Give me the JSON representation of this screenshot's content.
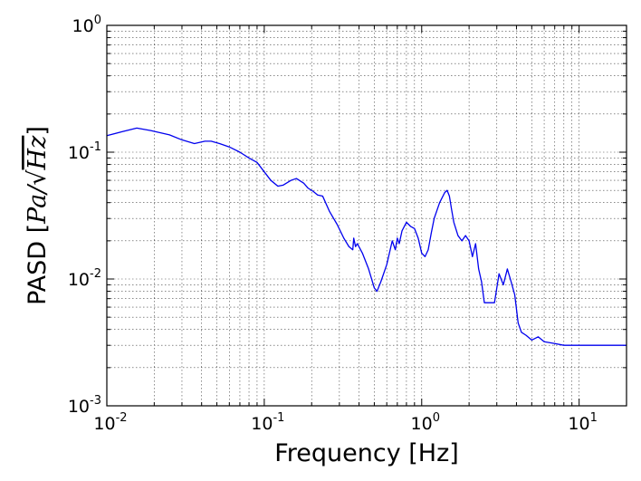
{
  "chart_data": {
    "type": "line",
    "title": "",
    "xlabel": "Frequency [Hz]",
    "ylabel_prefix": "PASD [",
    "ylabel_math": "Pa/",
    "ylabel_root": "Hz",
    "ylabel_suffix": "]",
    "xscale": "log",
    "yscale": "log",
    "xlim": [
      0.01,
      20.0
    ],
    "ylim": [
      0.001,
      1.0
    ],
    "grid": true,
    "legend": "none",
    "line_color": "#0000ee",
    "x_ticks": [
      {
        "base": "10",
        "exp": "-2",
        "value": 0.01
      },
      {
        "base": "10",
        "exp": "-1",
        "value": 0.1
      },
      {
        "base": "10",
        "exp": "0",
        "value": 1
      },
      {
        "base": "10",
        "exp": "1",
        "value": 10
      }
    ],
    "y_ticks": [
      {
        "base": "10",
        "exp": "0",
        "value": 1
      },
      {
        "base": "10",
        "exp": "-1",
        "value": 0.1
      },
      {
        "base": "10",
        "exp": "-2",
        "value": 0.01
      },
      {
        "base": "10",
        "exp": "-3",
        "value": 0.001
      }
    ],
    "series": [
      {
        "x": [
          0.01,
          0.0125,
          0.0155,
          0.019,
          0.025,
          0.03,
          0.036,
          0.042,
          0.046,
          0.052,
          0.06,
          0.07,
          0.08,
          0.09,
          0.1,
          0.11,
          0.122,
          0.132,
          0.148,
          0.16,
          0.178,
          0.19,
          0.205,
          0.218,
          0.235,
          0.26,
          0.29,
          0.32,
          0.345,
          0.365,
          0.37,
          0.38,
          0.39,
          0.42,
          0.46,
          0.5,
          0.52,
          0.55,
          0.6,
          0.65,
          0.68,
          0.7,
          0.72,
          0.75,
          0.8,
          0.85,
          0.9,
          0.95,
          1.0,
          1.05,
          1.1,
          1.15,
          1.2,
          1.3,
          1.4,
          1.45,
          1.5,
          1.55,
          1.6,
          1.7,
          1.8,
          1.9,
          2.0,
          2.1,
          2.2,
          2.3,
          2.4,
          2.5,
          2.7,
          2.9,
          3.1,
          3.3,
          3.5,
          3.7,
          3.9,
          4.1,
          4.3,
          4.6,
          5.0,
          5.5,
          6.0,
          7.0,
          8.0,
          10.0,
          12.0,
          15.0,
          20.0
        ],
        "y": [
          0.135,
          0.145,
          0.155,
          0.148,
          0.137,
          0.125,
          0.117,
          0.122,
          0.122,
          0.117,
          0.11,
          0.1,
          0.09,
          0.083,
          0.07,
          0.06,
          0.054,
          0.055,
          0.06,
          0.062,
          0.057,
          0.052,
          0.049,
          0.046,
          0.045,
          0.034,
          0.027,
          0.021,
          0.018,
          0.017,
          0.021,
          0.018,
          0.019,
          0.016,
          0.012,
          0.0085,
          0.008,
          0.0095,
          0.013,
          0.02,
          0.017,
          0.021,
          0.019,
          0.024,
          0.028,
          0.026,
          0.025,
          0.021,
          0.016,
          0.015,
          0.017,
          0.023,
          0.03,
          0.04,
          0.048,
          0.05,
          0.045,
          0.035,
          0.028,
          0.022,
          0.02,
          0.022,
          0.02,
          0.015,
          0.019,
          0.012,
          0.0095,
          0.0065,
          0.0065,
          0.0065,
          0.011,
          0.009,
          0.012,
          0.0095,
          0.0075,
          0.0045,
          0.0038,
          0.0036,
          0.0033,
          0.0035,
          0.0032,
          0.0031,
          0.003,
          0.003,
          0.003,
          0.003,
          0.003
        ]
      }
    ]
  }
}
